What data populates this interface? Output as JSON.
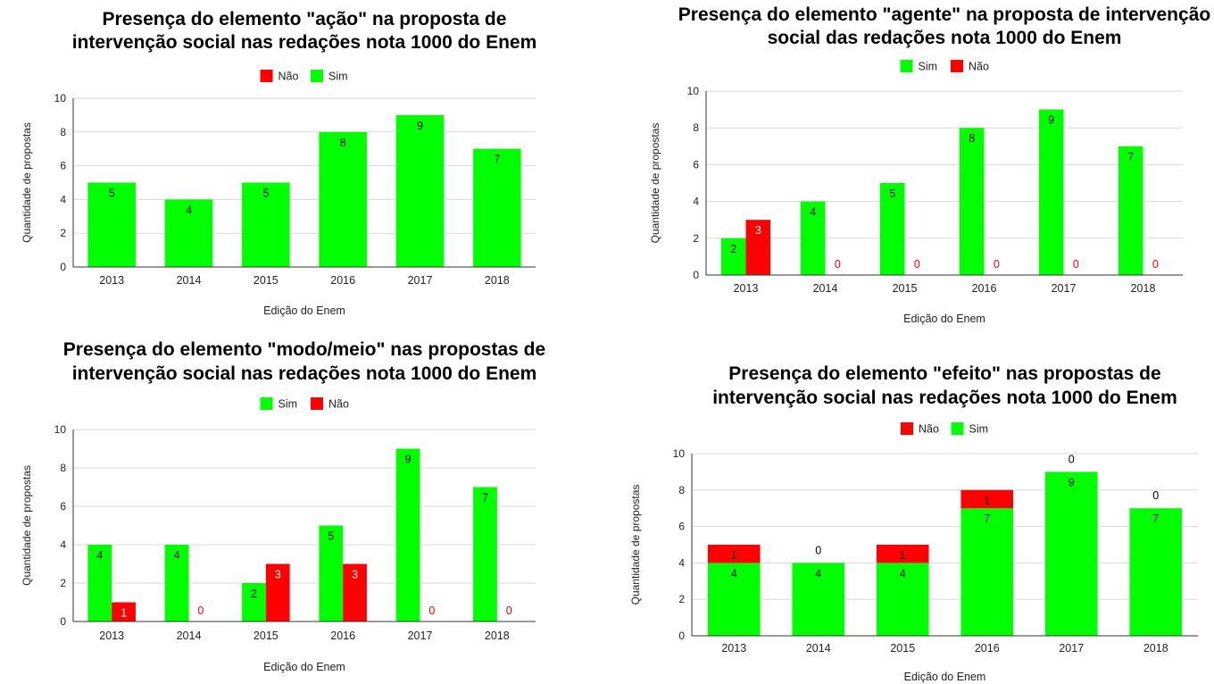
{
  "colors": {
    "sim": "#00ff00",
    "nao": "#ff0000",
    "grid": "#d9d9d9",
    "axis": "#333333"
  },
  "chart_data": [
    {
      "type": "bar",
      "mode": "stacked",
      "title_lines": [
        "Presença do elemento \"ação\" na proposta de",
        "intervenção social nas redações nota 1000 do Enem"
      ],
      "xlabel": "Edição do Enem",
      "ylabel": "Quantidade de propostas",
      "ylim": [
        0,
        10
      ],
      "yticks": [
        0,
        2,
        4,
        6,
        8,
        10
      ],
      "categories": [
        "2013",
        "2014",
        "2015",
        "2016",
        "2017",
        "2018"
      ],
      "legend_position": "top-center",
      "legend": [
        {
          "key": "nao",
          "label": "Não"
        },
        {
          "key": "sim",
          "label": "Sim"
        }
      ],
      "series": [
        {
          "key": "sim",
          "name": "Sim",
          "values": [
            5,
            4,
            5,
            8,
            9,
            7
          ]
        }
      ]
    },
    {
      "type": "bar",
      "mode": "grouped",
      "title_lines": [
        "Presença do elemento \"agente\" na proposta de intervenção",
        "social das redações nota 1000 do Enem"
      ],
      "xlabel": "Edição do Enem",
      "ylabel": "Quantidade de propostas",
      "ylim": [
        0,
        10
      ],
      "yticks": [
        0,
        2,
        4,
        6,
        8,
        10
      ],
      "categories": [
        "2013",
        "2014",
        "2015",
        "2016",
        "2017",
        "2018"
      ],
      "legend_position": "top-center",
      "legend": [
        {
          "key": "sim",
          "label": "Sim"
        },
        {
          "key": "nao",
          "label": "Não"
        }
      ],
      "series": [
        {
          "key": "sim",
          "name": "Sim",
          "values": [
            2,
            4,
            5,
            8,
            9,
            7
          ]
        },
        {
          "key": "nao",
          "name": "Não",
          "values": [
            3,
            0,
            0,
            0,
            0,
            0
          ]
        }
      ]
    },
    {
      "type": "bar",
      "mode": "grouped",
      "title_lines": [
        "Presença do elemento \"modo/meio\" nas propostas de",
        "intervenção social nas redações nota 1000 do Enem"
      ],
      "xlabel": "Edição do Enem",
      "ylabel": "Quantidade de propostas",
      "ylim": [
        0,
        10
      ],
      "yticks": [
        0,
        2,
        4,
        6,
        8,
        10
      ],
      "categories": [
        "2013",
        "2014",
        "2015",
        "2016",
        "2017",
        "2018"
      ],
      "legend_position": "top-center",
      "legend": [
        {
          "key": "sim",
          "label": "Sim"
        },
        {
          "key": "nao",
          "label": "Não"
        }
      ],
      "series": [
        {
          "key": "sim",
          "name": "Sim",
          "values": [
            4,
            4,
            2,
            5,
            9,
            7
          ]
        },
        {
          "key": "nao",
          "name": "Não",
          "values": [
            1,
            0,
            3,
            3,
            0,
            0
          ]
        }
      ]
    },
    {
      "type": "bar",
      "mode": "stacked",
      "title_lines": [
        "Presença do elemento \"efeito\" nas propostas de",
        "intervenção social nas redações nota 1000 do Enem"
      ],
      "xlabel": "Edição do Enem",
      "ylabel": "Quantidade de propostas",
      "ylim": [
        0,
        10
      ],
      "yticks": [
        0,
        2,
        4,
        6,
        8,
        10
      ],
      "categories": [
        "2013",
        "2014",
        "2015",
        "2016",
        "2017",
        "2018"
      ],
      "legend_position": "top-center",
      "legend": [
        {
          "key": "nao",
          "label": "Não"
        },
        {
          "key": "sim",
          "label": "Sim"
        }
      ],
      "series": [
        {
          "key": "sim",
          "name": "Sim",
          "values": [
            4,
            4,
            4,
            7,
            9,
            7
          ]
        },
        {
          "key": "nao",
          "name": "Não",
          "values": [
            1,
            0,
            1,
            1,
            0,
            0
          ]
        }
      ]
    }
  ]
}
